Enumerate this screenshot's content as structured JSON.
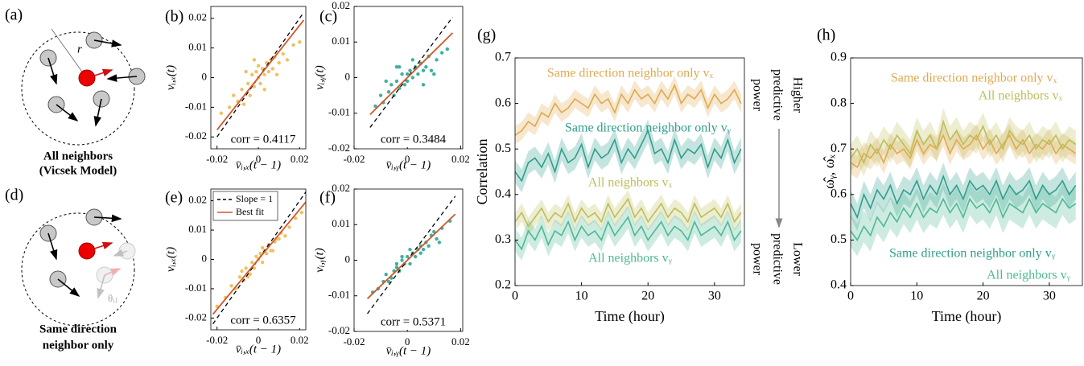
{
  "diagrams": [
    {
      "label": "(a)",
      "radius_label": "r",
      "caption": [
        "All neighbors",
        "(Vicsek Model)"
      ]
    },
    {
      "label": "(d)",
      "angle_label": "θᵢⱼ",
      "caption": [
        "Same direction",
        "neighbor only"
      ]
    }
  ],
  "chart_data": [
    {
      "type": "scatter",
      "label": "(b)",
      "xlabel": "v̄ᵢ,ₓ(t − 1)",
      "ylabel": "vᵢ,ₓ(t)",
      "annotation": "corr = 0.4117",
      "color": "#f0c060",
      "x": [
        -0.018,
        -0.014,
        -0.012,
        -0.01,
        -0.008,
        -0.007,
        -0.005,
        -0.004,
        -0.003,
        -0.002,
        -0.001,
        0,
        0,
        0.001,
        0.002,
        0.003,
        0.004,
        0.005,
        0.006,
        0.007,
        0.008,
        0.01,
        0.012,
        0.014,
        0.017,
        -0.006,
        0.003,
        -0.002,
        0.009,
        0.02
      ],
      "values": [
        -0.012,
        -0.01,
        -0.006,
        -0.008,
        -0.004,
        -0.009,
        -0.002,
        -0.006,
        0.001,
        -0.003,
        0.002,
        0,
        0.004,
        -0.002,
        0.003,
        0.001,
        0.005,
        0.002,
        0.006,
        0.003,
        0.007,
        0.005,
        0.008,
        0.006,
        0.011,
        0.002,
        -0.004,
        0.006,
        0.001,
        0.012
      ],
      "lines": [
        {
          "slope": 1,
          "color": "#000000",
          "dashed": true
        },
        {
          "slope": 0.88,
          "color": "#d2562a",
          "dashed": false
        }
      ],
      "xlim": [
        -0.023,
        0.023
      ],
      "ylim": [
        -0.024,
        0.024
      ],
      "xticks": [
        -0.02,
        0,
        0.02
      ],
      "yticks": [
        -0.02,
        -0.01,
        0,
        0.01,
        0.02
      ]
    },
    {
      "type": "scatter",
      "label": "(c)",
      "xlabel": "v̄ᵢ,ᵧ(t − 1)",
      "ylabel": "vᵢ,ᵧ(t)",
      "annotation": "corr = 0.3484",
      "color": "#3fb0a0",
      "x": [
        -0.012,
        -0.01,
        -0.009,
        -0.007,
        -0.006,
        -0.005,
        -0.004,
        -0.003,
        -0.002,
        -0.001,
        0,
        0,
        0.001,
        0.002,
        0.003,
        0.004,
        0.005,
        0.006,
        0.007,
        0.008,
        0.009,
        0.011,
        0.013,
        -0.008,
        0.002,
        -0.003,
        0.006,
        0.01,
        0.015,
        -0.004
      ],
      "values": [
        -0.008,
        -0.005,
        -0.007,
        -0.004,
        -0.002,
        -0.005,
        -0.001,
        -0.003,
        0.001,
        -0.002,
        0.001,
        -0.001,
        0.002,
        0,
        0.003,
        0.001,
        0.004,
        0.002,
        0.003,
        0.006,
        0.002,
        0.005,
        0.007,
        -0.001,
        0.005,
        0.003,
        -0.002,
        0.001,
        0.008,
        0.003
      ],
      "lines": [
        {
          "slope": 1,
          "color": "#000000",
          "dashed": true
        },
        {
          "slope": 0.74,
          "color": "#d2562a",
          "dashed": false
        }
      ],
      "xlim": [
        -0.02,
        0.0208
      ],
      "ylim": [
        -0.02,
        0.02
      ],
      "xticks": [
        -0.02,
        0,
        0.02
      ],
      "yticks": [
        -0.02,
        -0.01,
        0,
        0.01,
        0.02
      ]
    },
    {
      "type": "scatter",
      "label": "(e)",
      "xlabel": "v̄ᵢ,ₓ(t − 1)",
      "ylabel": "vᵢ,ₓ(t)",
      "annotation": "corr = 0.6357",
      "color": "#f0c060",
      "x": [
        -0.02,
        -0.016,
        -0.013,
        -0.011,
        -0.009,
        -0.007,
        -0.006,
        -0.004,
        -0.003,
        -0.002,
        -0.001,
        0,
        0.001,
        0.002,
        0.003,
        0.004,
        0.005,
        0.006,
        0.008,
        0.009,
        0.011,
        0.013,
        0.015,
        0.018,
        -0.005,
        0.002,
        -0.008,
        0.007,
        0.01,
        0.021
      ],
      "values": [
        -0.016,
        -0.013,
        -0.009,
        -0.01,
        -0.006,
        -0.007,
        -0.003,
        -0.005,
        -0.001,
        -0.003,
        0.001,
        0,
        0.002,
        -0.001,
        0.003,
        0.002,
        0.005,
        0.003,
        0.006,
        0.007,
        0.009,
        0.008,
        0.011,
        0.014,
        -0.006,
        0.004,
        -0.004,
        0.003,
        0.007,
        0.016
      ],
      "lines": [
        {
          "name": "Slope = 1",
          "slope": 1,
          "color": "#000000",
          "dashed": true
        },
        {
          "name": "Best fit",
          "slope": 0.85,
          "color": "#d2562a",
          "dashed": false
        }
      ],
      "legend": "upper left",
      "xlim": [
        -0.023,
        0.023
      ],
      "ylim": [
        -0.024,
        0.024
      ],
      "xticks": [
        -0.02,
        0,
        0.02
      ],
      "yticks": [
        -0.02,
        -0.01,
        0,
        0.01,
        0.02
      ]
    },
    {
      "type": "scatter",
      "label": "(f)",
      "xlabel": "v̄ᵢ,ᵧ(t − 1)",
      "ylabel": "vᵢ,ᵧ(t)",
      "annotation": "corr = 0.5371",
      "color": "#3fb0a0",
      "x": [
        -0.013,
        -0.011,
        -0.009,
        -0.008,
        -0.006,
        -0.005,
        -0.004,
        -0.003,
        -0.002,
        -0.001,
        0,
        0.001,
        0.002,
        0.003,
        0.004,
        0.005,
        0.006,
        0.007,
        0.008,
        0.009,
        0.011,
        0.013,
        0.016,
        -0.007,
        0.001,
        -0.002,
        0.005,
        0.01,
        0.012,
        -0.004
      ],
      "values": [
        -0.009,
        -0.008,
        -0.006,
        -0.004,
        -0.005,
        -0.003,
        -0.002,
        -0.003,
        0,
        -0.001,
        0.001,
        -0.001,
        0.002,
        0.001,
        0.003,
        0.004,
        0.003,
        0.005,
        0.004,
        0.007,
        0.006,
        0.009,
        0.011,
        -0.006,
        0.003,
        0.001,
        0.002,
        0.008,
        0.005,
        -0.001
      ],
      "lines": [
        {
          "slope": 1,
          "color": "#000000",
          "dashed": true
        },
        {
          "slope": 0.72,
          "color": "#d2562a",
          "dashed": false
        }
      ],
      "xlim": [
        -0.02,
        0.0208
      ],
      "ylim": [
        -0.02,
        0.02
      ],
      "xticks": [
        -0.02,
        0,
        0.02
      ],
      "yticks": [
        -0.02,
        -0.01,
        0,
        0.01,
        0.02
      ]
    },
    {
      "type": "line",
      "label": "(g)",
      "xlabel": "Time (hour)",
      "ylabel": "Correlation",
      "note_top": [
        "Higher",
        "predictive",
        "power"
      ],
      "note_bottom": [
        "Lower",
        "predictive",
        "power"
      ],
      "x": [
        0,
        1,
        2,
        3,
        4,
        5,
        6,
        7,
        8,
        9,
        10,
        11,
        12,
        13,
        14,
        15,
        16,
        17,
        18,
        19,
        20,
        21,
        22,
        23,
        24,
        25,
        26,
        27,
        28,
        29,
        30,
        31,
        32,
        33,
        34
      ],
      "series": [
        {
          "name": "Same direction neighbor only vₓ",
          "color": "#e0a94f",
          "spread": 0.02,
          "values": [
            0.53,
            0.54,
            0.56,
            0.55,
            0.58,
            0.57,
            0.6,
            0.58,
            0.59,
            0.61,
            0.6,
            0.59,
            0.62,
            0.6,
            0.61,
            0.58,
            0.62,
            0.6,
            0.63,
            0.61,
            0.62,
            0.6,
            0.63,
            0.61,
            0.64,
            0.6,
            0.62,
            0.61,
            0.63,
            0.59,
            0.62,
            0.6,
            0.61,
            0.63,
            0.6
          ]
        },
        {
          "name": "Same direction neighbor only vᵧ",
          "color": "#2f9e8c",
          "spread": 0.025,
          "values": [
            0.45,
            0.43,
            0.47,
            0.48,
            0.46,
            0.49,
            0.45,
            0.5,
            0.47,
            0.48,
            0.51,
            0.46,
            0.5,
            0.48,
            0.49,
            0.52,
            0.47,
            0.5,
            0.48,
            0.51,
            0.54,
            0.49,
            0.5,
            0.47,
            0.52,
            0.48,
            0.5,
            0.49,
            0.51,
            0.46,
            0.5,
            0.48,
            0.52,
            0.47,
            0.5
          ]
        },
        {
          "name": "All neighbors vₓ",
          "color": "#bdbd5a",
          "spread": 0.02,
          "values": [
            0.34,
            0.36,
            0.33,
            0.35,
            0.37,
            0.34,
            0.36,
            0.35,
            0.38,
            0.34,
            0.37,
            0.35,
            0.36,
            0.34,
            0.38,
            0.35,
            0.37,
            0.39,
            0.35,
            0.37,
            0.34,
            0.36,
            0.38,
            0.35,
            0.37,
            0.36,
            0.34,
            0.38,
            0.35,
            0.36,
            0.37,
            0.35,
            0.38,
            0.34,
            0.36
          ]
        },
        {
          "name": "All neighbors vᵧ",
          "color": "#4db894",
          "spread": 0.025,
          "values": [
            0.3,
            0.28,
            0.32,
            0.3,
            0.33,
            0.29,
            0.32,
            0.31,
            0.34,
            0.3,
            0.33,
            0.31,
            0.32,
            0.3,
            0.34,
            0.31,
            0.33,
            0.35,
            0.31,
            0.33,
            0.3,
            0.32,
            0.34,
            0.31,
            0.33,
            0.32,
            0.3,
            0.34,
            0.31,
            0.32,
            0.33,
            0.31,
            0.34,
            0.3,
            0.32
          ]
        }
      ],
      "xlim": [
        0,
        34.5
      ],
      "ylim": [
        0.2,
        0.7
      ],
      "xticks": [
        0,
        10,
        20,
        30
      ],
      "yticks": [
        0.2,
        0.3,
        0.4,
        0.5,
        0.6,
        0.7
      ]
    },
    {
      "type": "line",
      "label": "(h)",
      "xlabel": "Time (hour)",
      "ylabel": "ω̂ᵧ, ω̂ₓ",
      "x": [
        0,
        1,
        2,
        3,
        4,
        5,
        6,
        7,
        8,
        9,
        10,
        11,
        12,
        13,
        14,
        15,
        16,
        17,
        18,
        19,
        20,
        21,
        22,
        23,
        24,
        25,
        26,
        27,
        28,
        29,
        30,
        31,
        32,
        33,
        34
      ],
      "series": [
        {
          "name": "Same direction neighbor only vₓ",
          "color": "#e0a94f",
          "spread": 0.025,
          "values": [
            0.67,
            0.66,
            0.69,
            0.68,
            0.7,
            0.67,
            0.71,
            0.69,
            0.7,
            0.68,
            0.72,
            0.69,
            0.71,
            0.7,
            0.73,
            0.69,
            0.72,
            0.7,
            0.71,
            0.73,
            0.7,
            0.72,
            0.69,
            0.71,
            0.73,
            0.7,
            0.72,
            0.69,
            0.71,
            0.7,
            0.72,
            0.69,
            0.71,
            0.7,
            0.69
          ]
        },
        {
          "name": "All neighbors vₓ",
          "color": "#bdbd5a",
          "spread": 0.03,
          "values": [
            0.68,
            0.7,
            0.67,
            0.71,
            0.69,
            0.72,
            0.7,
            0.73,
            0.71,
            0.69,
            0.74,
            0.71,
            0.73,
            0.7,
            0.76,
            0.72,
            0.74,
            0.71,
            0.73,
            0.72,
            0.75,
            0.71,
            0.73,
            0.7,
            0.74,
            0.72,
            0.71,
            0.73,
            0.7,
            0.72,
            0.71,
            0.73,
            0.7,
            0.72,
            0.71
          ]
        },
        {
          "name": "Same direction neighbor only vᵧ",
          "color": "#2f9e8c",
          "spread": 0.03,
          "values": [
            0.58,
            0.55,
            0.6,
            0.57,
            0.61,
            0.59,
            0.62,
            0.58,
            0.61,
            0.6,
            0.63,
            0.59,
            0.62,
            0.6,
            0.64,
            0.6,
            0.62,
            0.59,
            0.63,
            0.61,
            0.62,
            0.6,
            0.63,
            0.59,
            0.62,
            0.6,
            0.61,
            0.63,
            0.59,
            0.62,
            0.6,
            0.61,
            0.63,
            0.6,
            0.62
          ]
        },
        {
          "name": "All neighbors vᵧ",
          "color": "#4db894",
          "spread": 0.035,
          "values": [
            0.52,
            0.5,
            0.53,
            0.51,
            0.55,
            0.53,
            0.56,
            0.54,
            0.57,
            0.55,
            0.58,
            0.55,
            0.57,
            0.56,
            0.59,
            0.56,
            0.58,
            0.55,
            0.59,
            0.57,
            0.58,
            0.56,
            0.59,
            0.55,
            0.58,
            0.57,
            0.56,
            0.59,
            0.56,
            0.58,
            0.57,
            0.56,
            0.59,
            0.57,
            0.58
          ]
        }
      ],
      "xlim": [
        0,
        35
      ],
      "ylim": [
        0.4,
        0.9
      ],
      "xticks": [
        0,
        10,
        20,
        30
      ],
      "yticks": [
        0.4,
        0.5,
        0.6,
        0.7,
        0.8,
        0.9
      ]
    }
  ]
}
